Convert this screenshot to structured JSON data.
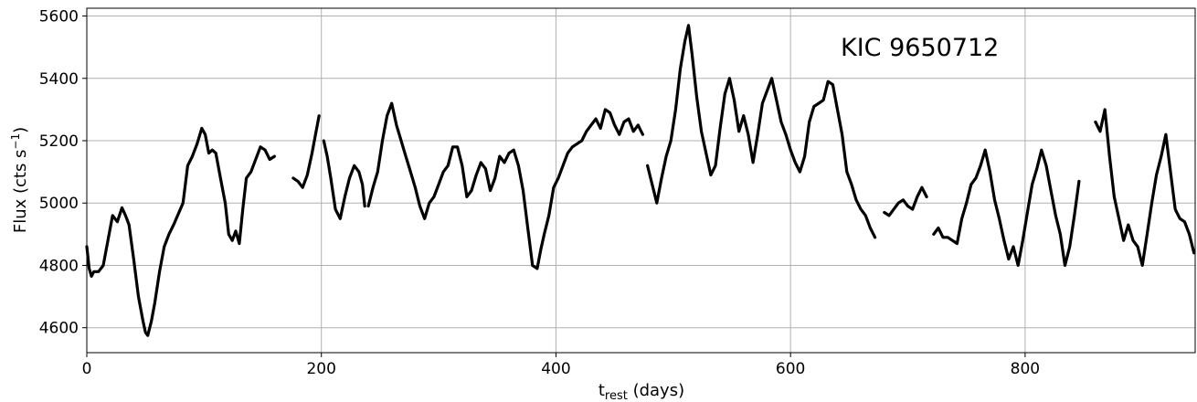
{
  "chart_data": {
    "type": "line",
    "annotation": "KIC 9650712",
    "xlabel_main": "t",
    "xlabel_sub": "rest",
    "xlabel_rest": " (days)",
    "ylabel_main": "Flux (cts s",
    "ylabel_sup": "−1",
    "ylabel_close": ")",
    "xlim": [
      0,
      945
    ],
    "ylim": [
      4520,
      5625
    ],
    "xticks": [
      0,
      200,
      400,
      600,
      800
    ],
    "yticks": [
      4600,
      4800,
      5000,
      5200,
      5400,
      5600
    ],
    "grid": true,
    "series_color": "#000000",
    "segments": [
      {
        "x": [
          0,
          2,
          4,
          6,
          10,
          14,
          18,
          22,
          26,
          30,
          33,
          36,
          40,
          44,
          48,
          50,
          52,
          55,
          58,
          62,
          66,
          70,
          74,
          78,
          82,
          86,
          90,
          94,
          98,
          101,
          104,
          107,
          110,
          114,
          118,
          121,
          124,
          127,
          130,
          133,
          136,
          140,
          144,
          148,
          152,
          156,
          160
        ],
        "y": [
          4860,
          4790,
          4765,
          4780,
          4780,
          4800,
          4880,
          4960,
          4940,
          4985,
          4960,
          4930,
          4820,
          4700,
          4620,
          4585,
          4575,
          4620,
          4680,
          4780,
          4860,
          4900,
          4930,
          4965,
          5000,
          5120,
          5150,
          5190,
          5240,
          5220,
          5160,
          5170,
          5160,
          5080,
          5000,
          4900,
          4880,
          4910,
          4870,
          4980,
          5080,
          5100,
          5140,
          5180,
          5170,
          5140,
          5150
        ]
      },
      {
        "x": [
          176,
          180,
          184,
          188,
          192,
          195,
          198
        ],
        "y": [
          5080,
          5070,
          5050,
          5090,
          5160,
          5220,
          5280
        ]
      },
      {
        "x": [
          202,
          205,
          208,
          212,
          216,
          220,
          224,
          228,
          232,
          235,
          237
        ],
        "y": [
          5200,
          5150,
          5080,
          4980,
          4950,
          5020,
          5080,
          5120,
          5100,
          5060,
          4990
        ]
      },
      {
        "x": [
          240,
          244,
          248,
          252,
          256,
          260,
          264,
          268,
          272,
          276,
          280,
          284,
          288,
          292,
          296,
          300,
          304,
          308,
          312,
          316,
          320,
          324,
          328,
          332,
          336,
          340,
          344,
          348,
          352,
          356,
          360,
          364,
          368,
          372,
          376,
          380,
          384,
          387,
          390,
          394,
          398,
          402,
          406,
          410,
          414,
          418,
          422,
          426,
          430,
          434,
          438,
          442,
          446,
          450,
          454,
          458,
          462,
          466,
          470,
          474
        ],
        "y": [
          4990,
          5050,
          5100,
          5200,
          5280,
          5320,
          5250,
          5200,
          5150,
          5100,
          5050,
          4990,
          4950,
          5000,
          5020,
          5060,
          5100,
          5120,
          5180,
          5180,
          5120,
          5020,
          5040,
          5090,
          5130,
          5110,
          5040,
          5080,
          5150,
          5130,
          5160,
          5170,
          5120,
          5040,
          4920,
          4800,
          4790,
          4850,
          4900,
          4960,
          5050,
          5080,
          5120,
          5160,
          5180,
          5190,
          5200,
          5230,
          5250,
          5270,
          5240,
          5300,
          5290,
          5250,
          5220,
          5260,
          5270,
          5230,
          5250,
          5220
        ]
      },
      {
        "x": [
          478,
          482,
          486,
          490,
          494,
          498,
          502,
          506,
          510,
          513,
          516,
          520,
          524,
          528,
          532,
          536,
          540,
          544,
          548,
          552,
          556,
          560,
          564,
          568,
          572,
          576,
          580,
          584,
          588,
          592,
          596,
          600,
          604,
          608,
          612,
          616,
          620,
          624,
          628,
          632,
          636,
          640,
          644,
          648,
          652,
          656,
          660,
          664,
          668,
          672
        ],
        "y": [
          5120,
          5060,
          5000,
          5080,
          5150,
          5200,
          5300,
          5430,
          5520,
          5570,
          5480,
          5340,
          5230,
          5160,
          5090,
          5120,
          5240,
          5350,
          5400,
          5330,
          5230,
          5280,
          5220,
          5130,
          5220,
          5320,
          5360,
          5400,
          5330,
          5260,
          5220,
          5170,
          5130,
          5100,
          5150,
          5260,
          5310,
          5320,
          5330,
          5390,
          5380,
          5300,
          5220,
          5100,
          5060,
          5010,
          4980,
          4960,
          4920,
          4890
        ]
      },
      {
        "x": [
          680,
          684,
          688,
          692,
          696,
          700,
          704,
          708,
          712,
          716
        ],
        "y": [
          4970,
          4960,
          4980,
          5000,
          5010,
          4990,
          4980,
          5020,
          5050,
          5020
        ]
      },
      {
        "x": [
          722,
          726,
          730,
          734,
          738,
          742,
          746,
          750,
          754,
          758,
          762,
          766,
          770,
          774,
          778,
          782,
          786,
          790,
          794,
          798,
          802,
          806,
          810,
          814,
          818,
          822,
          826,
          830,
          834,
          838,
          842,
          846
        ],
        "y": [
          4900,
          4920,
          4890,
          4890,
          4880,
          4870,
          4950,
          5000,
          5060,
          5080,
          5120,
          5170,
          5100,
          5010,
          4950,
          4880,
          4820,
          4860,
          4800,
          4880,
          4970,
          5060,
          5110,
          5170,
          5120,
          5040,
          4960,
          4900,
          4800,
          4860,
          4960,
          5070
        ]
      },
      {
        "x": [
          860,
          864,
          868,
          872,
          876,
          880,
          884,
          888,
          892,
          896,
          900,
          904,
          908,
          912,
          916,
          920,
          924,
          928,
          932,
          936,
          940,
          944
        ],
        "y": [
          5260,
          5230,
          5300,
          5150,
          5020,
          4950,
          4880,
          4930,
          4880,
          4860,
          4800,
          4900,
          5000,
          5090,
          5150,
          5220,
          5100,
          4980,
          4950,
          4940,
          4900,
          4840
        ]
      }
    ]
  }
}
